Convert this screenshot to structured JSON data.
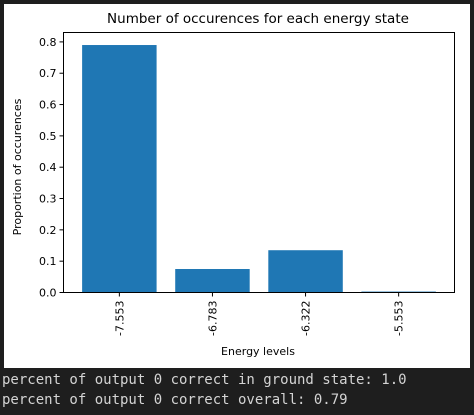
{
  "chart_data": {
    "type": "bar",
    "title": "Number of occurences for each energy state",
    "xlabel": "Energy levels",
    "ylabel": "Proportion of occurences",
    "categories": [
      "-7.553",
      "-6.783",
      "-6.322",
      "-5.553"
    ],
    "values": [
      0.79,
      0.075,
      0.135,
      0.003
    ],
    "ylim": [
      0,
      0.83
    ],
    "yticks": [
      0.0,
      0.1,
      0.2,
      0.3,
      0.4,
      0.5,
      0.6,
      0.7,
      0.8
    ],
    "ytick_labels": [
      "0.0",
      "0.1",
      "0.2",
      "0.3",
      "0.4",
      "0.5",
      "0.6",
      "0.7",
      "0.8"
    ],
    "bar_color": "#1f77b4",
    "grid": false,
    "legend": "none"
  },
  "output": {
    "lines": [
      "percent of output 0 correct in ground state: 1.0",
      "percent of output 0 correct overall: 0.79"
    ]
  },
  "colors": {
    "background": "#1e1e1e",
    "plot_background": "#ffffff",
    "output_text": "#d4d4d4"
  }
}
